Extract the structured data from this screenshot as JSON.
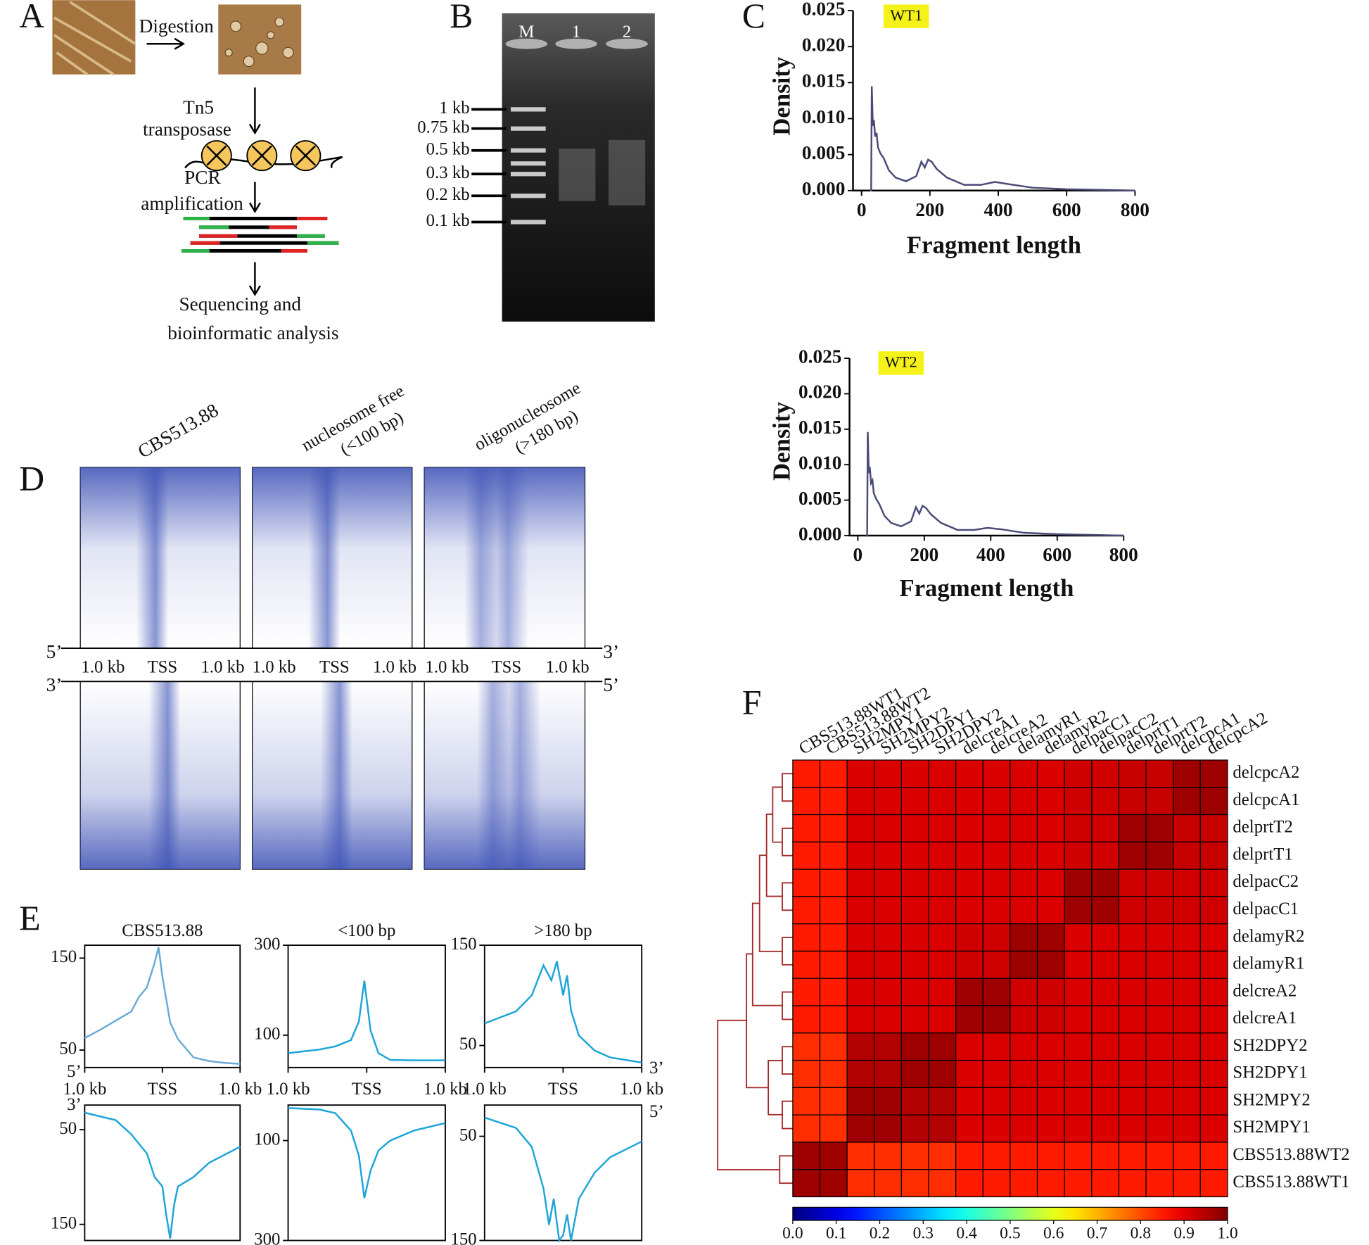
{
  "panel_a": {
    "label": "A",
    "step1": "Digestion",
    "step2": [
      "Tn5",
      "transposase"
    ],
    "step3": [
      "PCR",
      "amplification"
    ],
    "step4": [
      "Sequencing and",
      "bioinformatic analysis"
    ]
  },
  "panel_b": {
    "label": "B",
    "lanes": [
      "M",
      "1",
      "2"
    ],
    "markers": [
      "1 kb",
      "0.75 kb",
      "0.5 kb",
      "0.3 kb",
      "0.2 kb",
      "0.1 kb"
    ]
  },
  "panel_c": {
    "label": "C"
  },
  "panel_d": {
    "label": "D",
    "columns": [
      [
        "CBS513.88"
      ],
      [
        "nucleosome free",
        "(<100 bp)"
      ],
      [
        "oligonucleosome",
        "(>180 bp)"
      ]
    ],
    "x_labels": [
      "1.0 kb",
      "TSS",
      "1.0 kb"
    ],
    "ends_top": [
      "5’",
      "3’"
    ],
    "ends_bottom": [
      "3’",
      "5’"
    ]
  },
  "panel_e": {
    "label": "E",
    "ends_top": [
      "5’",
      "3’"
    ],
    "ends_bottom": [
      "3’",
      "5’"
    ]
  },
  "panel_f": {
    "label": "F"
  },
  "chart_data": [
    {
      "type": "line",
      "tag": "WT1",
      "x_label": "Fragment length",
      "y_label": "Density",
      "color": "#4b4b78",
      "x": [
        25,
        28,
        30,
        33,
        36,
        40,
        44,
        48,
        55,
        65,
        80,
        100,
        130,
        160,
        175,
        185,
        195,
        205,
        220,
        250,
        300,
        350,
        390,
        430,
        500,
        600,
        700,
        800
      ],
      "values": [
        0,
        0,
        0.0145,
        0.009,
        0.0098,
        0.0075,
        0.008,
        0.006,
        0.0052,
        0.0045,
        0.0028,
        0.0018,
        0.0013,
        0.002,
        0.004,
        0.0032,
        0.0043,
        0.004,
        0.003,
        0.0018,
        0.0008,
        0.0008,
        0.0012,
        0.0009,
        0.0004,
        0.0002,
        0.0001,
        0
      ],
      "xlim": [
        -25,
        800
      ],
      "xticks": [
        0,
        200,
        400,
        600,
        800
      ],
      "ylim": [
        0,
        0.025
      ],
      "yticks": [
        {
          "value": 0,
          "label": "0.000"
        },
        0.005,
        {
          "value": 0.01,
          "label": "0.010"
        },
        0.015,
        {
          "value": 0.02,
          "label": "0.020"
        },
        0.025
      ]
    },
    {
      "type": "line",
      "tag": "WT2",
      "x_label": "Fragment length",
      "y_label": "Density",
      "color": "#4b4b78",
      "x": [
        25,
        28,
        30,
        33,
        36,
        40,
        44,
        48,
        55,
        65,
        80,
        100,
        130,
        160,
        175,
        185,
        195,
        205,
        220,
        250,
        300,
        350,
        390,
        430,
        500,
        600,
        700,
        800
      ],
      "values": [
        0,
        0,
        0.0146,
        0.0088,
        0.0097,
        0.0074,
        0.0078,
        0.006,
        0.0052,
        0.0044,
        0.0028,
        0.0018,
        0.0013,
        0.002,
        0.004,
        0.0031,
        0.0042,
        0.0039,
        0.003,
        0.0018,
        0.0008,
        0.0008,
        0.0011,
        0.0009,
        0.0004,
        0.0002,
        0.0001,
        0
      ],
      "xlim": [
        -25,
        800
      ],
      "xticks": [
        0,
        200,
        400,
        600,
        800
      ],
      "ylim": [
        0,
        0.025
      ],
      "yticks": [
        {
          "value": 0,
          "label": "0.000"
        },
        0.005,
        {
          "value": 0.01,
          "label": "0.010"
        },
        0.015,
        {
          "value": 0.02,
          "label": "0.020"
        },
        0.025
      ]
    },
    {
      "type": "line",
      "title": "CBS513.88",
      "color": "#6aaad6",
      "x": [
        -1000,
        -800,
        -600,
        -400,
        -300,
        -200,
        -100,
        -50,
        0,
        100,
        200,
        400,
        600,
        800,
        1000
      ],
      "values": [
        63,
        72,
        82,
        92,
        108,
        118,
        145,
        162,
        130,
        80,
        62,
        42,
        38,
        36,
        35
      ],
      "xlim": [
        -1000,
        1000
      ],
      "xticks": [
        {
          "value": -1000,
          "label": "1.0 kb"
        },
        {
          "value": 0,
          "label": "TSS"
        },
        {
          "value": 1000,
          "label": "1.0 kb"
        }
      ],
      "ylim": [
        31,
        164
      ],
      "yticks": [
        50,
        150
      ]
    },
    {
      "type": "line",
      "title": "<100 bp",
      "color": "#1ea5d8",
      "x": [
        -1000,
        -600,
        -400,
        -200,
        -100,
        -30,
        50,
        150,
        300,
        600,
        1000
      ],
      "values": [
        60,
        68,
        75,
        89,
        130,
        221,
        110,
        60,
        45,
        44,
        44
      ],
      "xlim": [
        -1000,
        1000
      ],
      "xticks": [
        {
          "value": -1000,
          "label": "1.0 kb"
        },
        {
          "value": 0,
          "label": "TSS"
        },
        {
          "value": 1000,
          "label": "1.0 kb"
        }
      ],
      "ylim": [
        28,
        300
      ],
      "yticks": [
        100,
        300
      ]
    },
    {
      "type": "line",
      "title": ">180 bp",
      "color": "#1ea5d8",
      "x": [
        -1000,
        -600,
        -400,
        -250,
        -150,
        -80,
        0,
        50,
        100,
        200,
        400,
        600,
        1000
      ],
      "values": [
        72,
        84,
        100,
        130,
        115,
        134,
        100,
        120,
        85,
        60,
        45,
        38,
        33
      ],
      "xlim": [
        -1000,
        1000
      ],
      "xticks": [
        {
          "value": -1000,
          "label": "1.0 kb"
        },
        {
          "value": 0,
          "label": "TSS"
        },
        {
          "value": 1000,
          "label": "1.0 kb"
        }
      ],
      "ylim": [
        28,
        150
      ],
      "yticks": [
        50,
        150
      ]
    },
    {
      "type": "line",
      "color": "#1ea5d8",
      "y_inverted": true,
      "x": [
        -1000,
        -600,
        -400,
        -200,
        -100,
        0,
        50,
        100,
        150,
        200,
        400,
        600,
        1000
      ],
      "values": [
        32,
        40,
        55,
        75,
        100,
        110,
        140,
        165,
        130,
        110,
        100,
        85,
        68
      ],
      "xlim": [
        -1000,
        1000
      ],
      "ylim": [
        24,
        167
      ],
      "yticks": [
        50,
        150
      ]
    },
    {
      "type": "line",
      "color": "#1ea5d8",
      "y_inverted": true,
      "x": [
        -1000,
        -600,
        -400,
        -200,
        -100,
        -30,
        50,
        150,
        300,
        600,
        1000
      ],
      "values": [
        35,
        38,
        45,
        80,
        130,
        215,
        160,
        120,
        100,
        80,
        65
      ],
      "xlim": [
        -1000,
        1000
      ],
      "ylim": [
        29,
        300
      ],
      "yticks": [
        100,
        300
      ]
    },
    {
      "type": "line",
      "color": "#1ea5d8",
      "y_inverted": true,
      "x": [
        -1000,
        -600,
        -400,
        -250,
        -180,
        -120,
        -50,
        0,
        50,
        100,
        200,
        400,
        600,
        1000
      ],
      "values": [
        32,
        42,
        60,
        100,
        135,
        110,
        150,
        145,
        125,
        150,
        110,
        85,
        70,
        55
      ],
      "xlim": [
        -1000,
        1000
      ],
      "ylim": [
        20,
        150
      ],
      "yticks": [
        50,
        150
      ]
    },
    {
      "type": "heatmap",
      "colormap": "jet",
      "columns": [
        "CBS513.88WT1",
        "CBS513.88WT2",
        "SH2MPY1",
        "SH2MPY2",
        "SH2DPY1",
        "SH2DPY2",
        "delcreA1",
        "delcreA2",
        "delamyR1",
        "delamyR2",
        "delpacC1",
        "delpacC2",
        "delprtT1",
        "delprtT2",
        "delcpcA1",
        "delcpcA2"
      ],
      "rows": [
        "delcpcA2",
        "delcpcA1",
        "delprtT2",
        "delprtT1",
        "delpacC2",
        "delpacC1",
        "delamyR2",
        "delamyR1",
        "delcreA2",
        "delcreA1",
        "SH2DPY2",
        "SH2DPY1",
        "SH2MPY2",
        "SH2MPY1",
        "CBS513.88WT2",
        "CBS513.88WT1"
      ],
      "values": [
        [
          0.85,
          0.85,
          0.91,
          0.91,
          0.91,
          0.91,
          0.91,
          0.91,
          0.91,
          0.91,
          0.92,
          0.92,
          0.93,
          0.93,
          0.97,
          0.97
        ],
        [
          0.85,
          0.85,
          0.91,
          0.91,
          0.91,
          0.91,
          0.91,
          0.91,
          0.91,
          0.91,
          0.92,
          0.92,
          0.93,
          0.93,
          0.97,
          0.97
        ],
        [
          0.85,
          0.85,
          0.91,
          0.91,
          0.91,
          0.91,
          0.91,
          0.91,
          0.91,
          0.91,
          0.92,
          0.92,
          0.97,
          0.97,
          0.93,
          0.93
        ],
        [
          0.85,
          0.85,
          0.91,
          0.91,
          0.91,
          0.91,
          0.91,
          0.91,
          0.91,
          0.91,
          0.92,
          0.92,
          0.97,
          0.97,
          0.93,
          0.93
        ],
        [
          0.85,
          0.85,
          0.91,
          0.91,
          0.91,
          0.91,
          0.91,
          0.91,
          0.91,
          0.91,
          0.97,
          0.97,
          0.92,
          0.92,
          0.92,
          0.92
        ],
        [
          0.85,
          0.85,
          0.91,
          0.91,
          0.91,
          0.91,
          0.91,
          0.91,
          0.91,
          0.91,
          0.97,
          0.97,
          0.92,
          0.92,
          0.92,
          0.92
        ],
        [
          0.85,
          0.85,
          0.91,
          0.91,
          0.91,
          0.91,
          0.92,
          0.92,
          0.97,
          0.97,
          0.91,
          0.91,
          0.91,
          0.91,
          0.91,
          0.91
        ],
        [
          0.85,
          0.85,
          0.91,
          0.91,
          0.91,
          0.91,
          0.92,
          0.92,
          0.97,
          0.97,
          0.91,
          0.91,
          0.91,
          0.91,
          0.91,
          0.91
        ],
        [
          0.85,
          0.85,
          0.91,
          0.91,
          0.91,
          0.91,
          0.97,
          0.97,
          0.92,
          0.92,
          0.91,
          0.91,
          0.91,
          0.91,
          0.91,
          0.91
        ],
        [
          0.85,
          0.85,
          0.91,
          0.91,
          0.91,
          0.91,
          0.97,
          0.97,
          0.92,
          0.92,
          0.91,
          0.91,
          0.91,
          0.91,
          0.91,
          0.91
        ],
        [
          0.83,
          0.83,
          0.95,
          0.95,
          0.97,
          0.97,
          0.91,
          0.91,
          0.91,
          0.91,
          0.91,
          0.91,
          0.91,
          0.91,
          0.91,
          0.91
        ],
        [
          0.83,
          0.83,
          0.95,
          0.95,
          0.97,
          0.97,
          0.91,
          0.91,
          0.91,
          0.91,
          0.91,
          0.91,
          0.91,
          0.91,
          0.91,
          0.91
        ],
        [
          0.83,
          0.83,
          0.97,
          0.97,
          0.95,
          0.95,
          0.91,
          0.91,
          0.91,
          0.91,
          0.91,
          0.91,
          0.91,
          0.91,
          0.91,
          0.91
        ],
        [
          0.83,
          0.83,
          0.97,
          0.97,
          0.95,
          0.95,
          0.91,
          0.91,
          0.91,
          0.91,
          0.91,
          0.91,
          0.91,
          0.91,
          0.91,
          0.91
        ],
        [
          0.97,
          0.97,
          0.83,
          0.83,
          0.83,
          0.83,
          0.85,
          0.85,
          0.85,
          0.85,
          0.85,
          0.85,
          0.85,
          0.85,
          0.85,
          0.85
        ],
        [
          0.97,
          0.97,
          0.83,
          0.83,
          0.83,
          0.83,
          0.85,
          0.85,
          0.85,
          0.85,
          0.85,
          0.85,
          0.85,
          0.85,
          0.85,
          0.85
        ]
      ],
      "colorbar_lim": [
        0,
        1
      ],
      "colorbar_ticks": [
        {
          "value": 0,
          "label": "0.0"
        },
        0.1,
        0.2,
        0.3,
        0.4,
        0.5,
        0.6,
        0.7,
        0.8,
        0.9,
        {
          "value": 1,
          "label": "1.0"
        }
      ]
    }
  ]
}
